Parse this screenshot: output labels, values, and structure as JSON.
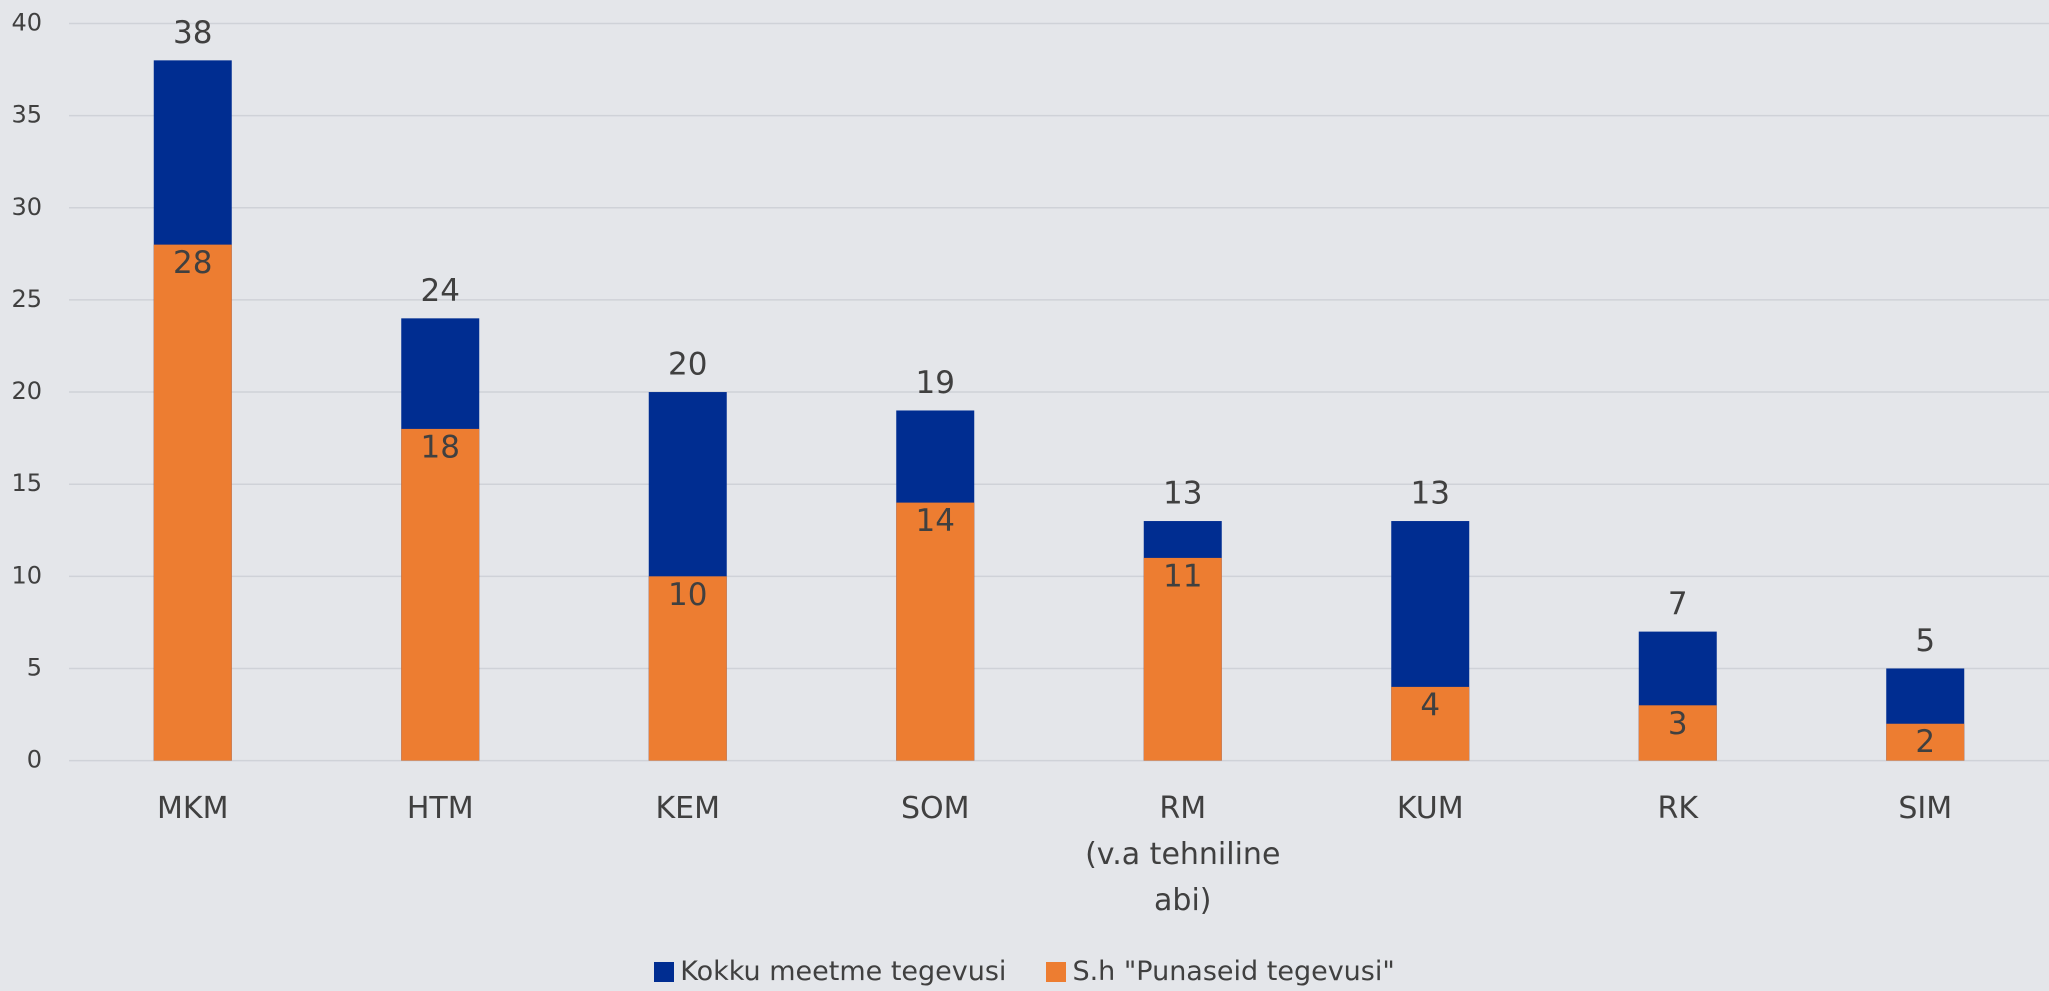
{
  "chart_data": {
    "type": "bar",
    "categories": [
      "MKM",
      "HTM",
      "KEM",
      "SOM",
      "RM\n(v.a tehniline\nabi)",
      "KUM",
      "RK",
      "SIM"
    ],
    "series": [
      {
        "name": "Kokku meetme tegevusi",
        "color": "#002d91",
        "values": [
          38,
          24,
          20,
          19,
          13,
          13,
          7,
          5
        ]
      },
      {
        "name": "S.h \"Punaseid tegevusi\"",
        "color": "#ed7d31",
        "values": [
          28,
          18,
          10,
          14,
          11,
          4,
          3,
          2
        ]
      }
    ],
    "ylim": [
      0,
      40
    ],
    "yticks": [
      0,
      5,
      10,
      15,
      20,
      25,
      30,
      35,
      40
    ],
    "grid": true,
    "legend": "bottom"
  }
}
